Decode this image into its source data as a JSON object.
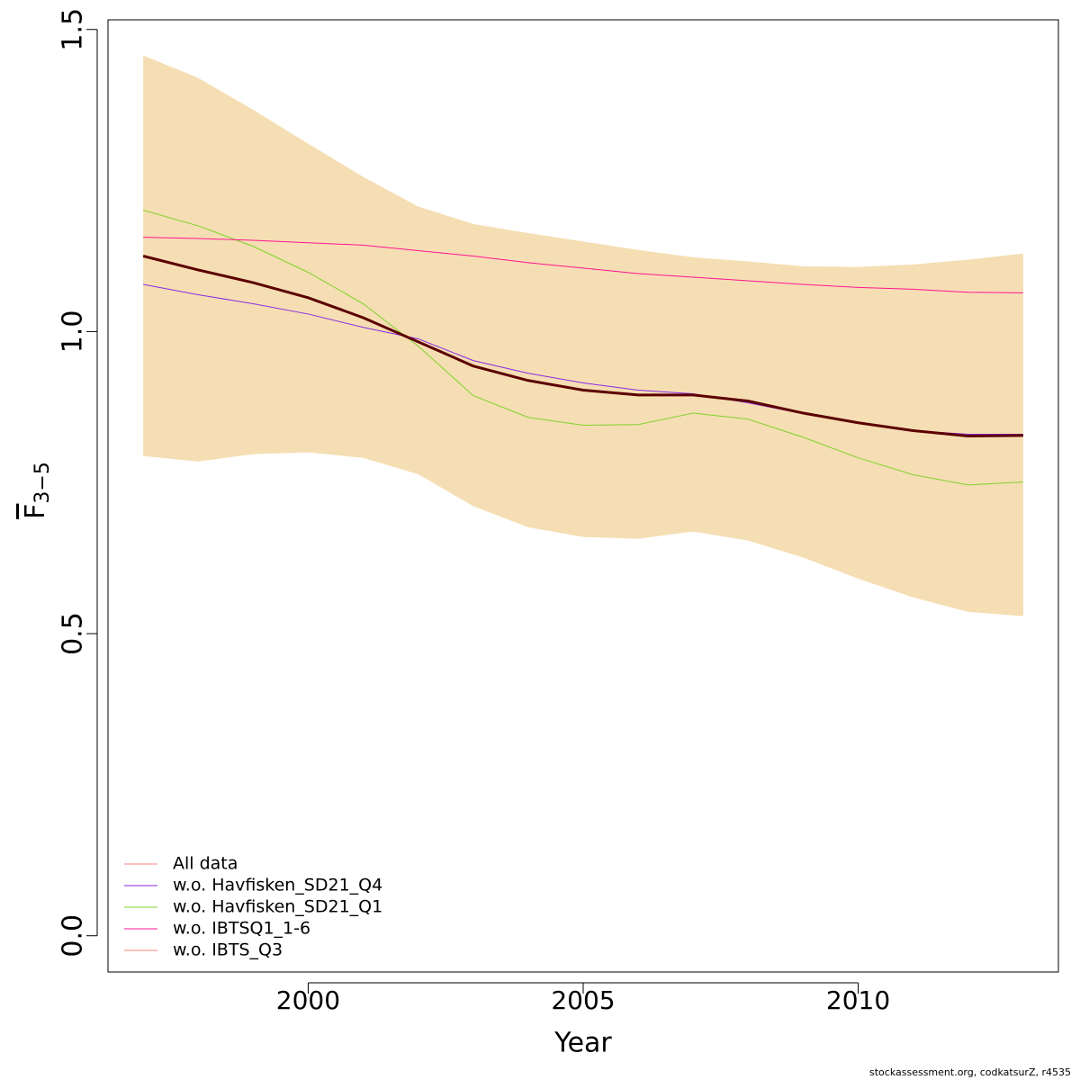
{
  "chart_data": {
    "type": "line",
    "x_label": "Year",
    "y_label": "F",
    "y_label_sub": "3−5",
    "footer": "stockassessment.org, codkatsurZ, r4535",
    "x": [
      1997,
      1998,
      1999,
      2000,
      2001,
      2002,
      2003,
      2004,
      2005,
      2006,
      2007,
      2008,
      2009,
      2010,
      2011,
      2012,
      2013
    ],
    "xlim": [
      1996.36,
      2013.64
    ],
    "xticks": [
      2000,
      2005,
      2010
    ],
    "ylim": [
      -0.06,
      1.516
    ],
    "yticks": [
      {
        "value": 0,
        "label": "0.0"
      },
      0.5,
      {
        "value": 1,
        "label": "1.0"
      },
      1.5
    ],
    "band": {
      "color": "#f5deb3",
      "upper": [
        1.457,
        1.42,
        1.367,
        1.311,
        1.256,
        1.207,
        1.178,
        1.163,
        1.149,
        1.135,
        1.123,
        1.116,
        1.108,
        1.107,
        1.111,
        1.119,
        1.129
      ],
      "lower": [
        0.794,
        0.785,
        0.797,
        0.8,
        0.791,
        0.764,
        0.711,
        0.676,
        0.66,
        0.657,
        0.669,
        0.654,
        0.626,
        0.591,
        0.56,
        0.536,
        0.529
      ]
    },
    "best_estimate": {
      "color": "#5c0000",
      "values": [
        1.125,
        1.102,
        1.081,
        1.056,
        1.023,
        0.983,
        0.943,
        0.919,
        0.903,
        0.895,
        0.895,
        0.885,
        0.865,
        0.849,
        0.836,
        0.827,
        0.828
      ]
    },
    "series": [
      {
        "name": "All data",
        "color": "#f08080",
        "values": [
          1.125,
          1.102,
          1.081,
          1.056,
          1.023,
          0.983,
          0.943,
          0.919,
          0.903,
          0.895,
          0.895,
          0.885,
          0.865,
          0.849,
          0.836,
          0.827,
          0.828
        ]
      },
      {
        "name": "w.o. Havfisken_SD21_Q4",
        "color": "#8a2be2",
        "values": [
          1.078,
          1.061,
          1.046,
          1.029,
          1.007,
          0.988,
          0.952,
          0.931,
          0.915,
          0.903,
          0.897,
          0.882,
          0.864,
          0.849,
          0.836,
          0.83,
          0.83
        ]
      },
      {
        "name": "w.o. Havfisken_SD21_Q1",
        "color": "#7fd32a",
        "values": [
          1.201,
          1.175,
          1.141,
          1.098,
          1.046,
          0.976,
          0.894,
          0.858,
          0.845,
          0.846,
          0.865,
          0.855,
          0.825,
          0.791,
          0.763,
          0.746,
          0.751
        ]
      },
      {
        "name": "w.o. IBTSQ1_1-6",
        "color": "#ff1493",
        "values": [
          1.156,
          1.154,
          1.151,
          1.147,
          1.143,
          1.134,
          1.125,
          1.114,
          1.105,
          1.096,
          1.09,
          1.084,
          1.078,
          1.073,
          1.07,
          1.065,
          1.064
        ]
      },
      {
        "name": "w.o. IBTS_Q3",
        "color": "#f4827a",
        "values": [
          1.125,
          1.102,
          1.081,
          1.056,
          1.023,
          0.983,
          0.943,
          0.919,
          0.903,
          0.895,
          0.895,
          0.885,
          0.865,
          0.849,
          0.836,
          0.827,
          0.828
        ]
      }
    ],
    "legend": "bottom-left"
  }
}
